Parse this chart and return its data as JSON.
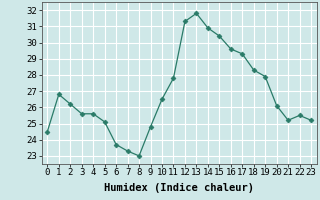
{
  "x": [
    0,
    1,
    2,
    3,
    4,
    5,
    6,
    7,
    8,
    9,
    10,
    11,
    12,
    13,
    14,
    15,
    16,
    17,
    18,
    19,
    20,
    21,
    22,
    23
  ],
  "y": [
    24.5,
    26.8,
    26.2,
    25.6,
    25.6,
    25.1,
    23.7,
    23.3,
    23.0,
    24.8,
    26.5,
    27.8,
    31.3,
    31.8,
    30.9,
    30.4,
    29.6,
    29.3,
    28.3,
    27.9,
    26.1,
    25.2,
    25.5,
    25.2
  ],
  "line_color": "#2a7b68",
  "marker": "D",
  "marker_size": 2.5,
  "bg_color": "#cfe8e8",
  "grid_color": "#ffffff",
  "xlabel": "Humidex (Indice chaleur)",
  "ylim": [
    22.5,
    32.5
  ],
  "yticks": [
    23,
    24,
    25,
    26,
    27,
    28,
    29,
    30,
    31,
    32
  ],
  "xticks": [
    0,
    1,
    2,
    3,
    4,
    5,
    6,
    7,
    8,
    9,
    10,
    11,
    12,
    13,
    14,
    15,
    16,
    17,
    18,
    19,
    20,
    21,
    22,
    23
  ],
  "tick_fontsize": 6.5,
  "xlabel_fontsize": 7.5
}
